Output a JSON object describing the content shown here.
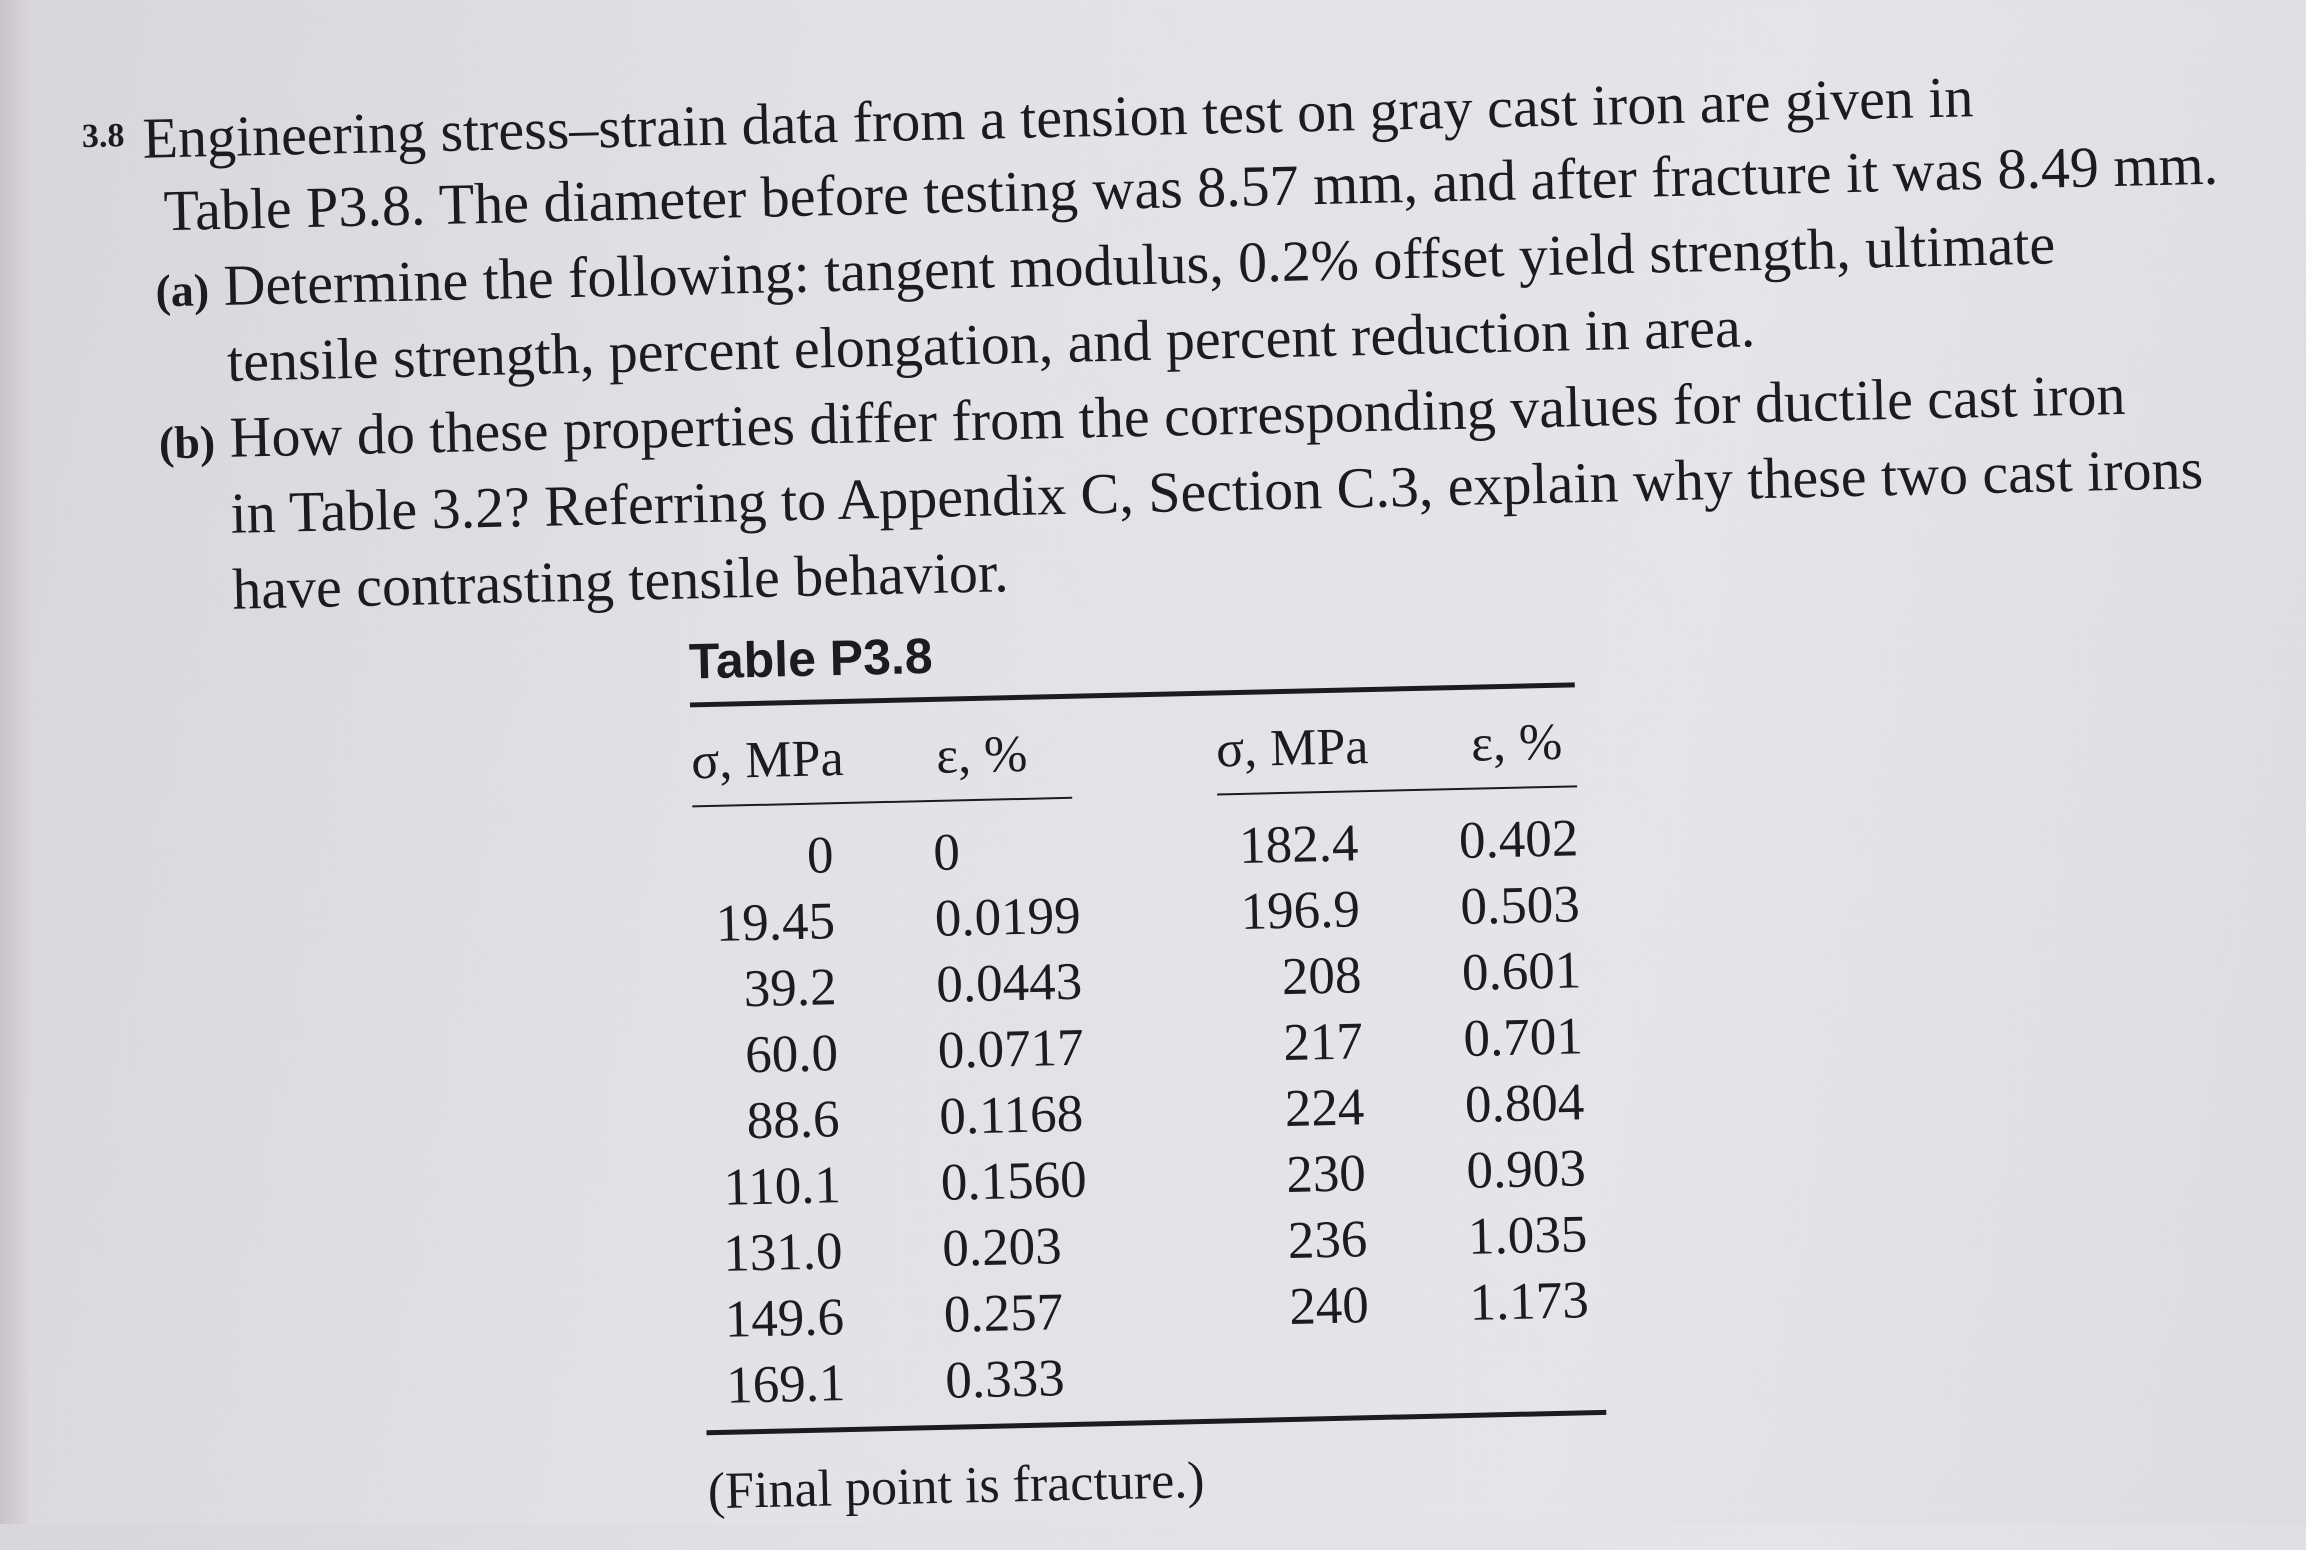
{
  "problem": {
    "number": "3.8",
    "lines": [
      "Engineering stress–strain data from a tension test on gray cast iron are given in",
      "Table P3.8. The diameter before testing was 8.57 mm, and after fracture it was 8.49 mm.",
      "Determine the following: tangent modulus, 0.2% offset yield strength, ultimate",
      "tensile strength, percent elongation, and percent reduction in area.",
      "How do these properties differ from the corresponding values for ductile cast iron",
      "in Table 3.2? Referring to Appendix C, Section C.3, explain why these two cast irons",
      "have contrasting tensile behavior."
    ],
    "part_a_label": "(a)",
    "part_b_label": "(b)"
  },
  "table": {
    "title": "Table P3.8",
    "headers": [
      "σ, MPa",
      "ε, %",
      "σ, MPa",
      "ε, %"
    ],
    "col1": [
      "0",
      "19.45",
      "39.2",
      "60.0",
      "88.6",
      "110.1",
      "131.0",
      "149.6",
      "169.1"
    ],
    "col2": [
      "0",
      "0.0199",
      "0.0443",
      "0.0717",
      "0.1168",
      "0.1560",
      "0.203",
      "0.257",
      "0.333"
    ],
    "col3": [
      "182.4",
      "196.9",
      "208",
      "217",
      "224",
      "230",
      "236",
      "240"
    ],
    "col4": [
      "0.402",
      "0.503",
      "0.601",
      "0.701",
      "0.804",
      "0.903",
      "1.035",
      "1.173"
    ],
    "note": "(Final point is fracture.)"
  }
}
